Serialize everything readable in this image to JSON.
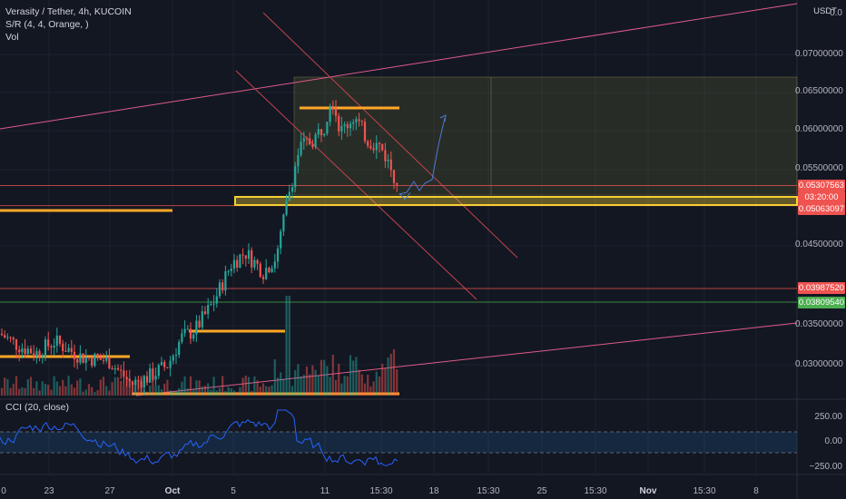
{
  "legend": {
    "symbol": "Verasity / Tether, 4h, KUCOIN",
    "indicator_sr": "S/R (4, 4, Orange, )",
    "indicator_vol": "Vol",
    "indicator_cci": "CCI (20, close)"
  },
  "price_axis": {
    "unit": "USDT",
    "ticks": [
      "0.07000000",
      "0.06500000",
      "0.06000000",
      "0.05500000",
      "0.04500000",
      "0.03500000",
      "0.03000000"
    ],
    "top_partial": "0.0"
  },
  "price_tags": {
    "last_price": "0.05307563",
    "countdown": "03:20:00",
    "level_1": "0.05063097",
    "level_2": "0.03987520",
    "level_3": "0.03809540"
  },
  "cci_axis": {
    "ticks": [
      "250.00",
      "0.00",
      "−250.00"
    ]
  },
  "time_axis": {
    "labels": [
      "0",
      "23",
      "27",
      "Oct",
      "5",
      "11",
      "15:30",
      "18",
      "15:30",
      "25",
      "15:30",
      "Nov",
      "15:30",
      "8"
    ]
  },
  "colors": {
    "background": "#131722",
    "up": "#26a69a",
    "down": "#ef5350",
    "sr_orange": "#ffa726",
    "zone_yellow": "#f5d033",
    "trend_pink": "#e05a8a",
    "cci_line": "#2962ff",
    "grid": "#1e222d"
  },
  "chart_data": {
    "type": "candlestick",
    "y_range": [
      0.0255,
      0.0765
    ],
    "levels": {
      "sr_top": 0.063,
      "sr_mid_left": 0.0347,
      "sr_low_left": 0.0311,
      "sr_bottom": 0.0255,
      "sr_far_left": 0.0493,
      "yellow_zone": 0.0505,
      "red_line_1": 0.0531,
      "red_line_2": 0.0399,
      "green_line": 0.0381
    },
    "cci_range": [
      -250,
      250
    ]
  }
}
